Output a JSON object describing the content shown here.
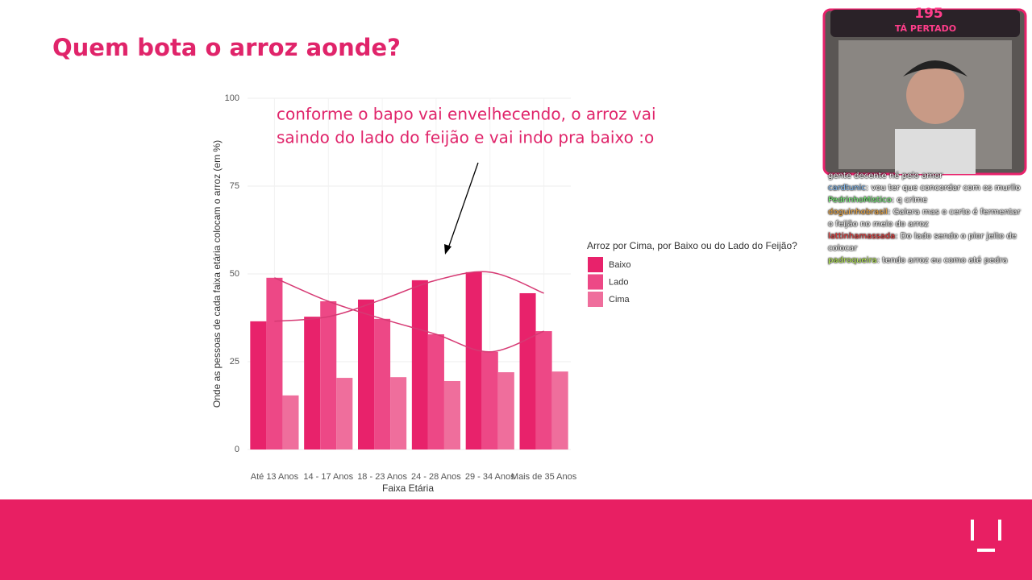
{
  "slide_title": "Quem bota o arroz aonde?",
  "chart_data": {
    "type": "bar",
    "annotation": [
      "conforme o bapo vai envelhecendo, o arroz vai",
      "saindo do lado do feijão e vai indo pra baixo :o"
    ],
    "x_label": "Faixa Etária",
    "y_label": "Onde as pessoas de cada faixa etária colocam o arroz (em %)",
    "legend_title": "Arroz por Cima, por Baixo ou do Lado do Feijão?",
    "categories": [
      "Até 13 Anos",
      "14 - 17 Anos",
      "18 - 23 Anos",
      "24 - 28 Anos",
      "29 - 34 Anos",
      "Mais de 35 Anos"
    ],
    "series": [
      {
        "name": "Baixo",
        "color": "#e8226b",
        "values": [
          36.5,
          37.8,
          42.7,
          48.2,
          50.5,
          44.5
        ]
      },
      {
        "name": "Lado",
        "color": "#ed4886",
        "values": [
          48.9,
          42.2,
          37.2,
          32.8,
          27.8,
          33.7
        ]
      },
      {
        "name": "Cima",
        "color": "#ef6e9c",
        "values": [
          15.4,
          20.4,
          20.6,
          19.5,
          22,
          22.2
        ]
      }
    ],
    "ylim": [
      0,
      100
    ],
    "yticks": [
      0,
      25,
      50,
      75,
      100
    ],
    "grid": true,
    "trend_lines": true
  },
  "stream_overlay": {
    "counter": "195",
    "caption": "TÁ PERTADO"
  },
  "chat": [
    {
      "user": "",
      "message": "gente decente né pelo amor"
    },
    {
      "user": "cardtunic",
      "message": ": vou ter que concordar com os murilo"
    },
    {
      "user": "PedrinhoMistico",
      "message": ": q crime"
    },
    {
      "user": "doguinhobrasil",
      "message": ": Galera mas o certo é fermentar o feijão no meio do arroz"
    },
    {
      "user": "lattinhamassada",
      "message": ": Do lado sendo o pior jeito de colocar"
    },
    {
      "user": "padroqueira",
      "message": ": tendo arroz eu como até pedra"
    }
  ]
}
